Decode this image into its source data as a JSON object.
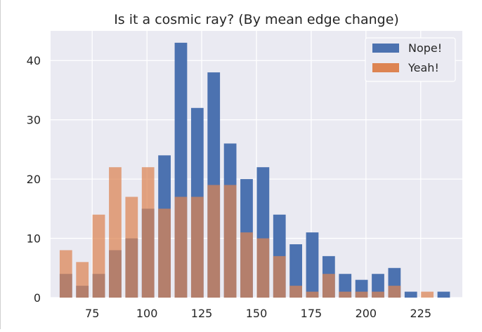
{
  "chart_data": {
    "type": "bar",
    "title": "Is it a cosmic ray? (By mean edge change)",
    "xlabel": "",
    "ylabel": "",
    "xlim": [
      56,
      244
    ],
    "ylim": [
      0,
      45
    ],
    "x_ticks": [
      75,
      100,
      125,
      150,
      175,
      200,
      225
    ],
    "y_ticks": [
      0,
      10,
      20,
      30,
      40
    ],
    "grid": true,
    "legend_position": "top-right",
    "bin_width": 7.6,
    "series": [
      {
        "name": "Nope!",
        "color": "#4c72b0",
        "x": [
          63,
          70.5,
          78,
          85.5,
          93,
          100.5,
          108,
          115.5,
          123,
          130.5,
          138,
          145.5,
          153,
          160.5,
          168,
          175.5,
          183,
          190.5,
          198,
          205.5,
          213,
          220.5,
          228,
          235.5
        ],
        "values": [
          4,
          2,
          4,
          8,
          10,
          15,
          24,
          43,
          32,
          38,
          26,
          20,
          22,
          14,
          9,
          11,
          7,
          4,
          3,
          4,
          5,
          1,
          0,
          1
        ]
      },
      {
        "name": "Yeah!",
        "color": "#dd8452",
        "x": [
          63,
          70.5,
          78,
          85.5,
          93,
          100.5,
          108,
          115.5,
          123,
          130.5,
          138,
          145.5,
          153,
          160.5,
          168,
          175.5,
          183,
          190.5,
          198,
          205.5,
          213,
          220.5,
          228,
          235.5
        ],
        "values": [
          8,
          6,
          14,
          22,
          17,
          22,
          15,
          17,
          17,
          19,
          19,
          11,
          10,
          7,
          2,
          1,
          4,
          1,
          1,
          1,
          2,
          0,
          1,
          0
        ]
      }
    ]
  }
}
